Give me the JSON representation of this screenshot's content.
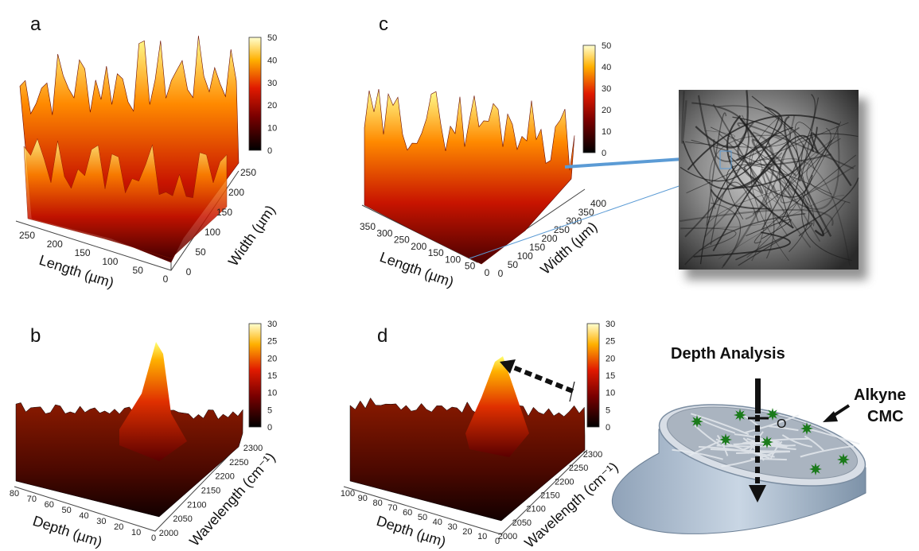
{
  "panels": {
    "a": {
      "letter": "a",
      "colorbar_ticks": [
        "0",
        "10",
        "20",
        "30",
        "40",
        "50"
      ],
      "length_ticks": [
        "250",
        "200",
        "150",
        "100",
        "50",
        "0"
      ],
      "width_ticks": [
        "0",
        "50",
        "100",
        "150",
        "200",
        "250"
      ],
      "xlabel": "Length (µm)",
      "ylabel": "Width (µm)"
    },
    "b": {
      "letter": "b",
      "colorbar_ticks": [
        "0",
        "5",
        "10",
        "15",
        "20",
        "25",
        "30"
      ],
      "depth_ticks": [
        "80",
        "70",
        "60",
        "50",
        "40",
        "30",
        "20",
        "10",
        "0"
      ],
      "wavelength_ticks": [
        "2000",
        "2050",
        "2100",
        "2150",
        "2200",
        "2250",
        "2300"
      ],
      "xlabel": "Depth (µm)",
      "ylabel": "Wavelength (cm⁻¹)"
    },
    "c": {
      "letter": "c",
      "colorbar_ticks": [
        "0",
        "10",
        "20",
        "30",
        "40",
        "50"
      ],
      "length_ticks": [
        "350",
        "300",
        "250",
        "200",
        "150",
        "100",
        "50",
        "0"
      ],
      "width_ticks": [
        "0",
        "50",
        "100",
        "150",
        "200",
        "250",
        "300",
        "350",
        "400"
      ],
      "xlabel": "Length (µm)",
      "ylabel": "Width (µm)"
    },
    "d": {
      "letter": "d",
      "colorbar_ticks": [
        "0",
        "5",
        "10",
        "15",
        "20",
        "25",
        "30"
      ],
      "depth_ticks": [
        "100",
        "90",
        "80",
        "70",
        "60",
        "50",
        "40",
        "30",
        "20",
        "10",
        "0"
      ],
      "wavelength_ticks": [
        "2000",
        "2050",
        "2100",
        "2150",
        "2200",
        "2250",
        "2300"
      ],
      "xlabel": "Depth (µm)",
      "ylabel": "Wavelength (cm⁻¹)"
    }
  },
  "schematic": {
    "title": "Depth Analysis",
    "label_line1": "Alkyne",
    "label_line2": "CMC",
    "origin_label": "O"
  },
  "colors": {
    "heat_low": "#000000",
    "heat_mid": "#d01010",
    "heat_high": "#ffff60",
    "connector": "#5b9bd5",
    "cmc_green": "#1a7a1a"
  }
}
